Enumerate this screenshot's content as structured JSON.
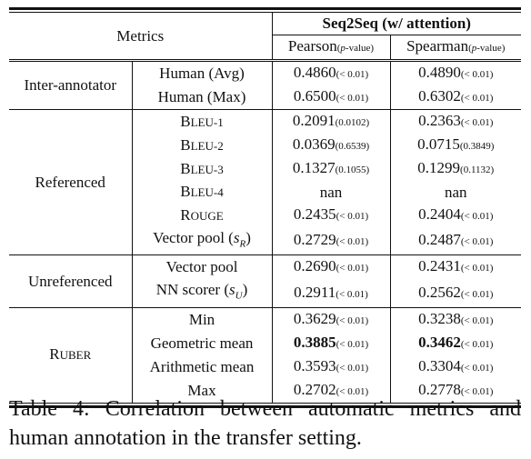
{
  "header": {
    "metrics_label": "Metrics",
    "group_label": "Seq2Seq (w/ attention)",
    "pearson_label": "Pearson",
    "pearson_sub": "(p-value)",
    "spearman_label": "Spearman",
    "spearman_sub": "(p-value)"
  },
  "groups": [
    {
      "name": "Inter-annotator",
      "rows": [
        {
          "metric": "Human (Avg)",
          "pearson": "0.4860",
          "pearson_p": "(< 0.01)",
          "spearman": "0.4890",
          "spearman_p": "(< 0.01)"
        },
        {
          "metric": "Human (Max)",
          "pearson": "0.6500",
          "pearson_p": "(< 0.01)",
          "spearman": "0.6302",
          "spearman_p": "(< 0.01)"
        }
      ]
    },
    {
      "name": "Referenced",
      "rows": [
        {
          "metric": "BLEU-1",
          "pearson": "0.2091",
          "pearson_p": "(0.0102)",
          "spearman": "0.2363",
          "spearman_p": "(< 0.01)"
        },
        {
          "metric": "BLEU-2",
          "pearson": "0.0369",
          "pearson_p": "(0.6539)",
          "spearman": "0.0715",
          "spearman_p": "(0.3849)"
        },
        {
          "metric": "BLEU-3",
          "pearson": "0.1327",
          "pearson_p": "(0.1055)",
          "spearman": "0.1299",
          "spearman_p": "(0.1132)"
        },
        {
          "metric": "BLEU-4",
          "pearson": "nan",
          "pearson_p": "",
          "spearman": "nan",
          "spearman_p": ""
        },
        {
          "metric": "ROUGE",
          "pearson": "0.2435",
          "pearson_p": "(< 0.01)",
          "spearman": "0.2404",
          "spearman_p": "(< 0.01)"
        },
        {
          "metric": "Vector pool (sR)",
          "pearson": "0.2729",
          "pearson_p": "(< 0.01)",
          "spearman": "0.2487",
          "spearman_p": "(< 0.01)"
        }
      ]
    },
    {
      "name": "Unreferenced",
      "rows": [
        {
          "metric": "Vector pool",
          "pearson": "0.2690",
          "pearson_p": "(< 0.01)",
          "spearman": "0.2431",
          "spearman_p": "(< 0.01)"
        },
        {
          "metric": "NN scorer (sU)",
          "pearson": "0.2911",
          "pearson_p": "(< 0.01)",
          "spearman": "0.2562",
          "spearman_p": "(< 0.01)"
        }
      ]
    },
    {
      "name": "RUBER",
      "rows": [
        {
          "metric": "Min",
          "pearson": "0.3629",
          "pearson_p": "(< 0.01)",
          "spearman": "0.3238",
          "spearman_p": "(< 0.01)"
        },
        {
          "metric": "Geometric mean",
          "pearson": "0.3885",
          "pearson_p": "(< 0.01)",
          "spearman": "0.3462",
          "spearman_p": "(< 0.01)"
        },
        {
          "metric": "Arithmetic mean",
          "pearson": "0.3593",
          "pearson_p": "(< 0.01)",
          "spearman": "0.3304",
          "spearman_p": "(< 0.01)"
        },
        {
          "metric": "Max",
          "pearson": "0.2702",
          "pearson_p": "(< 0.01)",
          "spearman": "0.2778",
          "spearman_p": "(< 0.01)"
        }
      ]
    }
  ],
  "caption": "Table 4: Correlation between automatic metrics and human annotation in the transfer setting."
}
